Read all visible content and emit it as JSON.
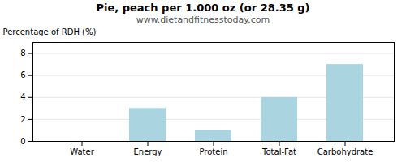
{
  "chart_data": {
    "type": "bar",
    "title": "Pie, peach per 1.000 oz (or 28.35 g)",
    "subtitle": "www.dietandfitnesstoday.com",
    "categories": [
      "Water",
      "Energy",
      "Protein",
      "Total-Fat",
      "Carbohydrate"
    ],
    "values": [
      0,
      3,
      1,
      4,
      7
    ],
    "color": "#aad4e0",
    "ylabel": "Percentage of RDH (%)",
    "ylim": [
      0,
      9
    ],
    "yticks": [
      0,
      2,
      4,
      6,
      8
    ],
    "grid": true
  }
}
